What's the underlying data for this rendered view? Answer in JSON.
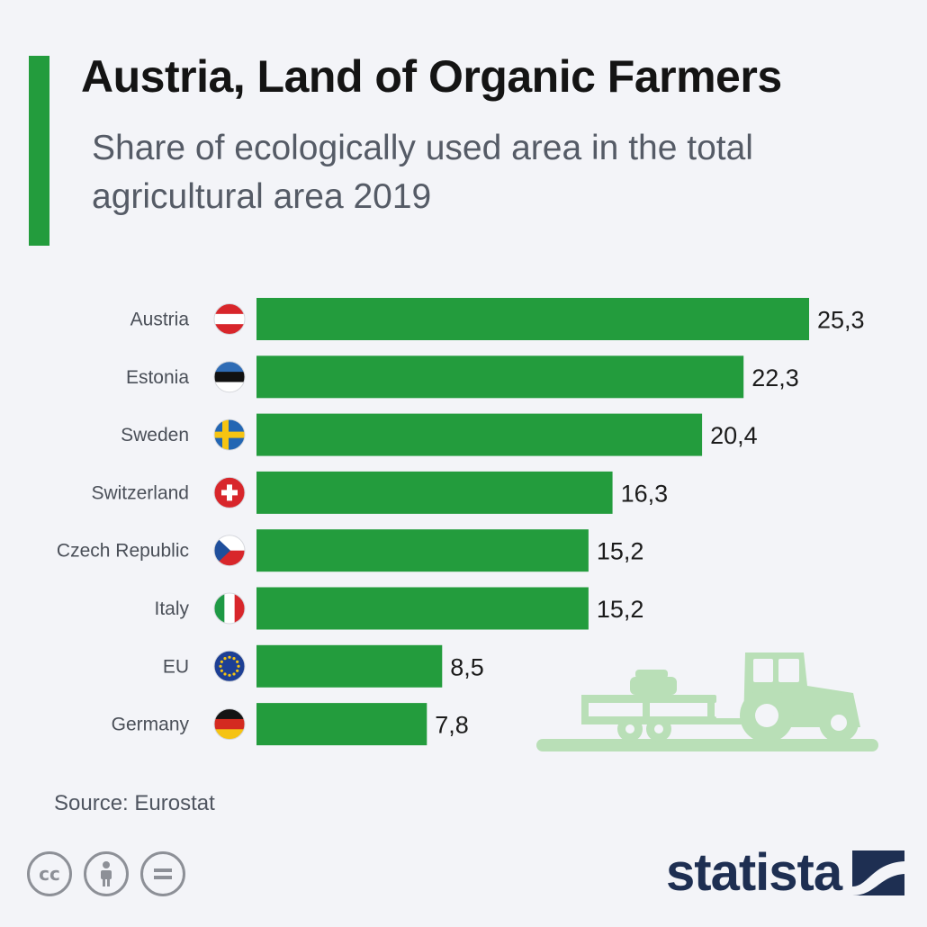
{
  "title": "Austria, Land of Organic Farmers",
  "subtitle": "Share of ecologically used area in the total agricultural area 2019",
  "source": "Source: Eurostat",
  "brand": "statista",
  "colors": {
    "accent": "#239c3d",
    "bar": "#239c3d",
    "text": "#141414",
    "subtext": "#555b66",
    "background": "#f3f4f8",
    "tractor": "#b9dfb7"
  },
  "license_icons": [
    "creative-commons-icon",
    "attribution-person-icon",
    "no-derivatives-icon"
  ],
  "chart_data": {
    "type": "bar",
    "orientation": "horizontal",
    "categories": [
      "Austria",
      "Estonia",
      "Sweden",
      "Switzerland",
      "Czech Republic",
      "Italy",
      "EU",
      "Germany"
    ],
    "values": [
      25.3,
      22.3,
      20.4,
      16.3,
      15.2,
      15.2,
      8.5,
      7.8
    ],
    "value_labels": [
      "25,3",
      "22,3",
      "20,4",
      "16,3",
      "15,2",
      "15,2",
      "8,5",
      "7,8"
    ],
    "flag_icons": [
      "austria-flag-icon",
      "estonia-flag-icon",
      "sweden-flag-icon",
      "switzerland-flag-icon",
      "czech-republic-flag-icon",
      "italy-flag-icon",
      "eu-flag-icon",
      "germany-flag-icon"
    ],
    "xlim": [
      0,
      25.3
    ],
    "grid": false,
    "legend": "none"
  }
}
